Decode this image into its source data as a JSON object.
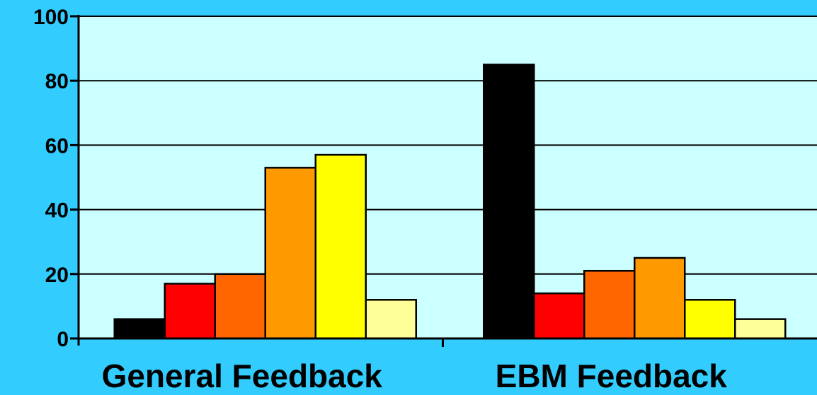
{
  "chart_data": {
    "type": "bar",
    "categories": [
      "General Feedback",
      "EBM Feedback"
    ],
    "series": [
      {
        "color": "#000000",
        "values": [
          6,
          85
        ]
      },
      {
        "color": "#ff0000",
        "values": [
          17,
          14
        ]
      },
      {
        "color": "#ff6600",
        "values": [
          20,
          21
        ]
      },
      {
        "color": "#ff9900",
        "values": [
          53,
          25
        ]
      },
      {
        "color": "#ffff00",
        "values": [
          57,
          12
        ]
      },
      {
        "color": "#ffff99",
        "values": [
          12,
          6
        ]
      }
    ],
    "yticks": [
      "0",
      "20",
      "40",
      "60",
      "80",
      "100"
    ],
    "ylim": [
      0,
      100
    ],
    "grid": true,
    "legend": "none"
  },
  "colors": {
    "background": "#33ccff",
    "plot_area": "#ccffff",
    "gridline": "#000000"
  }
}
